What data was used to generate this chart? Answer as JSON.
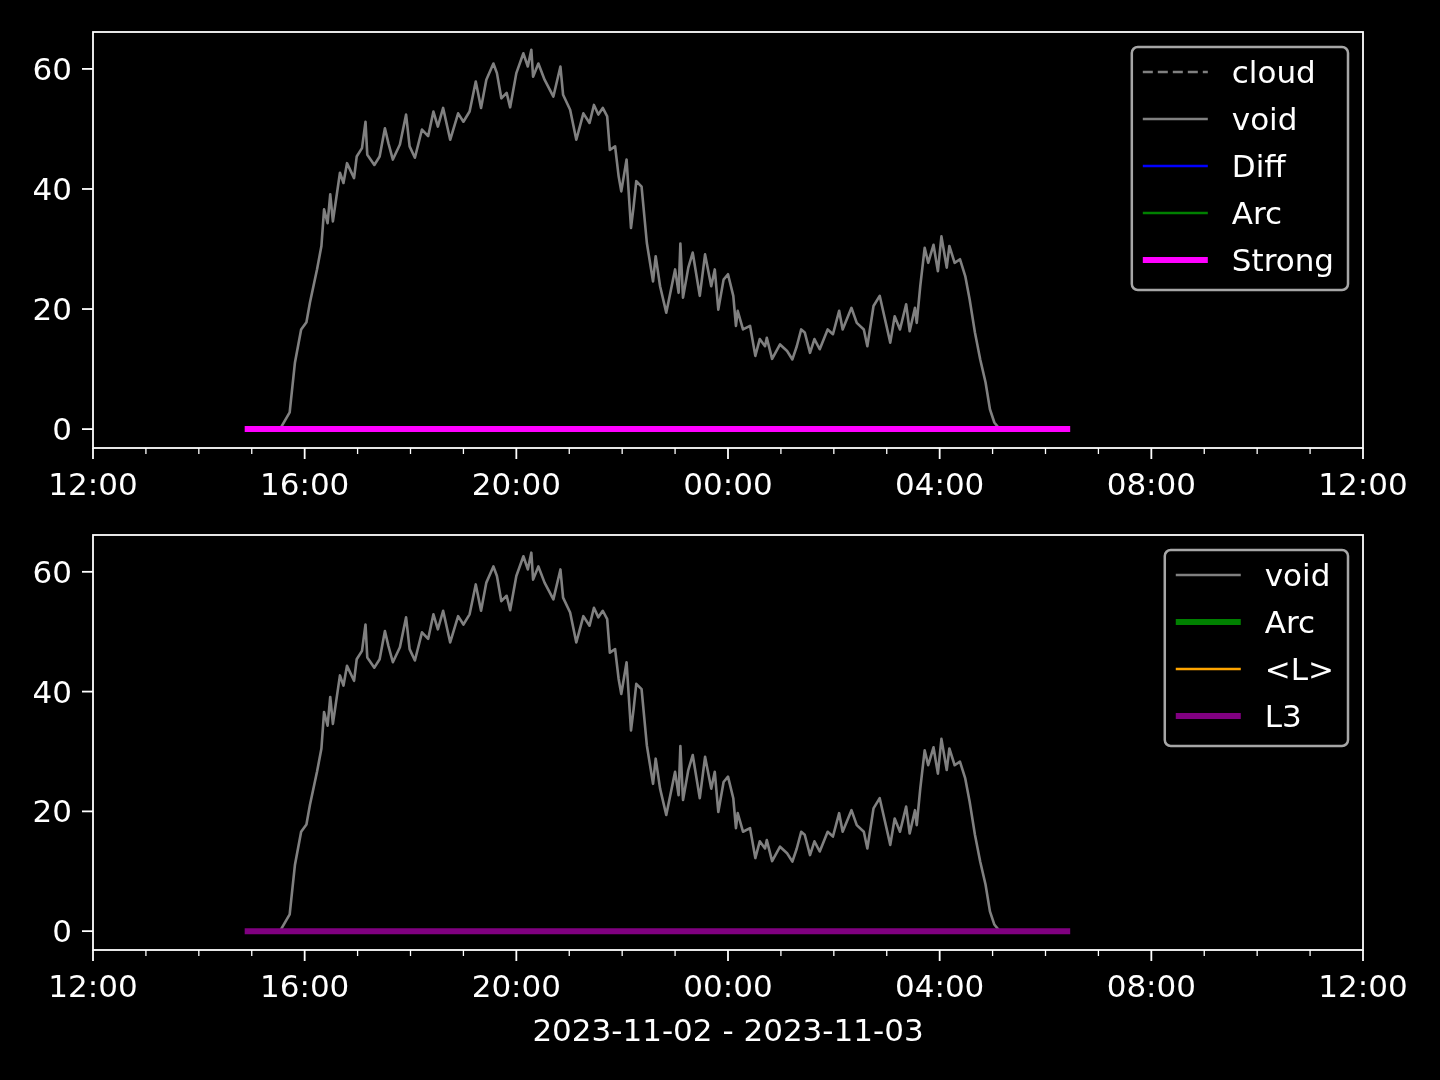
{
  "chart_data": [
    {
      "type": "line",
      "xlim": [
        "2023-11-02T12:00",
        "2023-11-03T12:00"
      ],
      "ylim": [
        -3.15,
        66.15
      ],
      "yticks": [
        0,
        20,
        40,
        60
      ],
      "xticks": [
        {
          "value": "2023-11-02T12:00",
          "label": "12:00"
        },
        {
          "value": "2023-11-02T13:00",
          "label": null
        },
        {
          "value": "2023-11-02T14:00",
          "label": null
        },
        {
          "value": "2023-11-02T15:00",
          "label": null
        },
        {
          "value": "2023-11-02T16:00",
          "label": "16:00"
        },
        {
          "value": "2023-11-02T17:00",
          "label": null
        },
        {
          "value": "2023-11-02T18:00",
          "label": null
        },
        {
          "value": "2023-11-02T19:00",
          "label": null
        },
        {
          "value": "2023-11-02T20:00",
          "label": "20:00"
        },
        {
          "value": "2023-11-02T21:00",
          "label": null
        },
        {
          "value": "2023-11-02T22:00",
          "label": null
        },
        {
          "value": "2023-11-02T23:00",
          "label": null
        },
        {
          "value": "2023-11-03T00:00",
          "label": "00:00"
        },
        {
          "value": "2023-11-03T01:00",
          "label": null
        },
        {
          "value": "2023-11-03T02:00",
          "label": null
        },
        {
          "value": "2023-11-03T03:00",
          "label": null
        },
        {
          "value": "2023-11-03T04:00",
          "label": "04:00"
        },
        {
          "value": "2023-11-03T05:00",
          "label": null
        },
        {
          "value": "2023-11-03T06:00",
          "label": null
        },
        {
          "value": "2023-11-03T07:00",
          "label": null
        },
        {
          "value": "2023-11-03T08:00",
          "label": "08:00"
        },
        {
          "value": "2023-11-03T09:00",
          "label": null
        },
        {
          "value": "2023-11-03T10:00",
          "label": null
        },
        {
          "value": "2023-11-03T11:00",
          "label": null
        },
        {
          "value": "2023-11-03T12:00",
          "label": "12:00"
        }
      ],
      "legend": "top right",
      "series": [
        {
          "name": "cloud",
          "color": "#808080",
          "line_style": "dashed"
        },
        {
          "name": "void",
          "color": "#808080",
          "x": [
            "2023-11-02T15:32",
            "2023-11-02T15:43",
            "2023-11-02T15:49",
            "2023-11-02T15:56",
            "2023-11-02T16:02",
            "2023-11-02T16:06",
            "2023-11-02T16:14",
            "2023-11-02T16:19",
            "2023-11-02T16:22",
            "2023-11-02T16:26",
            "2023-11-02T16:29",
            "2023-11-02T16:32",
            "2023-11-02T16:40",
            "2023-11-02T16:44",
            "2023-11-02T16:48",
            "2023-11-02T16:56",
            "2023-11-02T16:59",
            "2023-11-02T17:05",
            "2023-11-02T17:09",
            "2023-11-02T17:11",
            "2023-11-02T17:19",
            "2023-11-02T17:25",
            "2023-11-02T17:31",
            "2023-11-02T17:35",
            "2023-11-02T17:40",
            "2023-11-02T17:48",
            "2023-11-02T17:55",
            "2023-11-02T17:59",
            "2023-11-02T18:05",
            "2023-11-02T18:13",
            "2023-11-02T18:20",
            "2023-11-02T18:26",
            "2023-11-02T18:31",
            "2023-11-02T18:37",
            "2023-11-02T18:45",
            "2023-11-02T18:54",
            "2023-11-02T19:00",
            "2023-11-02T19:07",
            "2023-11-02T19:14",
            "2023-11-02T19:20",
            "2023-11-02T19:26",
            "2023-11-02T19:34",
            "2023-11-02T19:38",
            "2023-11-02T19:43",
            "2023-11-02T19:49",
            "2023-11-02T19:53",
            "2023-11-02T20:00",
            "2023-11-02T20:08",
            "2023-11-02T20:13",
            "2023-11-02T20:17",
            "2023-11-02T20:19",
            "2023-11-02T20:25",
            "2023-11-02T20:32",
            "2023-11-02T20:42",
            "2023-11-02T20:50",
            "2023-11-02T20:53",
            "2023-11-02T21:01",
            "2023-11-02T21:08",
            "2023-11-02T21:16",
            "2023-11-02T21:23",
            "2023-11-02T21:28",
            "2023-11-02T21:33",
            "2023-11-02T21:38",
            "2023-11-02T21:43",
            "2023-11-02T21:46",
            "2023-11-02T21:52",
            "2023-11-02T21:56",
            "2023-11-02T21:59",
            "2023-11-02T22:05",
            "2023-11-02T22:10",
            "2023-11-02T22:13",
            "2023-11-02T22:16",
            "2023-11-02T22:22",
            "2023-11-02T22:28",
            "2023-11-02T22:35",
            "2023-11-02T22:38",
            "2023-11-02T22:43",
            "2023-11-02T22:50",
            "2023-11-02T23:00",
            "2023-11-02T23:04",
            "2023-11-02T23:06",
            "2023-11-02T23:09",
            "2023-11-02T23:15",
            "2023-11-02T23:20",
            "2023-11-02T23:28",
            "2023-11-02T23:34",
            "2023-11-02T23:41",
            "2023-11-02T23:45",
            "2023-11-02T23:49",
            "2023-11-02T23:55",
            "2023-11-03T00:00",
            "2023-11-03T00:06",
            "2023-11-03T00:09",
            "2023-11-03T00:11",
            "2023-11-03T00:17",
            "2023-11-03T00:25",
            "2023-11-03T00:31",
            "2023-11-03T00:36",
            "2023-11-03T00:42",
            "2023-11-03T00:44",
            "2023-11-03T00:50",
            "2023-11-03T00:59",
            "2023-11-03T01:07",
            "2023-11-03T01:13",
            "2023-11-03T01:18",
            "2023-11-03T01:23",
            "2023-11-03T01:27",
            "2023-11-03T01:33",
            "2023-11-03T01:38",
            "2023-11-03T01:44",
            "2023-11-03T01:53",
            "2023-11-03T01:59",
            "2023-11-03T02:06",
            "2023-11-03T02:10",
            "2023-11-03T02:20",
            "2023-11-03T02:26",
            "2023-11-03T02:34",
            "2023-11-03T02:38",
            "2023-11-03T02:45",
            "2023-11-03T02:52",
            "2023-11-03T02:58",
            "2023-11-03T03:04",
            "2023-11-03T03:09",
            "2023-11-03T03:15",
            "2023-11-03T03:22",
            "2023-11-03T03:26",
            "2023-11-03T03:32",
            "2023-11-03T03:34",
            "2023-11-03T03:38",
            "2023-11-03T03:43",
            "2023-11-03T03:47",
            "2023-11-03T03:53",
            "2023-11-03T03:58",
            "2023-11-03T04:02",
            "2023-11-03T04:08",
            "2023-11-03T04:11",
            "2023-11-03T04:17",
            "2023-11-03T04:23",
            "2023-11-03T04:29",
            "2023-11-03T04:34",
            "2023-11-03T04:40",
            "2023-11-03T04:46",
            "2023-11-03T04:52",
            "2023-11-03T04:57",
            "2023-11-03T05:02",
            "2023-11-03T05:08"
          ],
          "values": [
            0,
            2.8,
            11.1,
            16.6,
            17.8,
            21.1,
            26.6,
            30.5,
            36.6,
            34.3,
            39.1,
            34.6,
            42.7,
            41.0,
            44.3,
            41.8,
            45.4,
            46.8,
            51.2,
            45.7,
            44.0,
            45.4,
            50.1,
            47.6,
            44.9,
            47.4,
            52.4,
            47.1,
            45.2,
            49.9,
            48.8,
            52.9,
            50.4,
            53.5,
            48.2,
            52.6,
            51.2,
            52.9,
            57.9,
            53.5,
            58.2,
            60.9,
            59.3,
            55.1,
            56.0,
            53.6,
            59.3,
            62.6,
            60.4,
            63.2,
            58.7,
            60.9,
            58.2,
            55.4,
            60.4,
            55.7,
            53.2,
            48.2,
            52.6,
            51.0,
            54.0,
            52.4,
            53.5,
            52.1,
            46.5,
            47.1,
            42.1,
            39.6,
            44.9,
            33.5,
            37.1,
            41.3,
            40.4,
            31.0,
            24.6,
            28.8,
            23.8,
            19.4,
            26.6,
            22.7,
            30.9,
            21.9,
            26.9,
            29.4,
            22.2,
            29.1,
            23.8,
            26.6,
            19.9,
            24.9,
            25.8,
            22.2,
            17.2,
            19.7,
            16.6,
            17.2,
            12.2,
            15.0,
            13.8,
            15.2,
            11.7,
            14.1,
            13.0,
            11.6,
            13.8,
            16.6,
            16.1,
            12.7,
            15.0,
            13.3,
            16.6,
            15.8,
            19.7,
            16.6,
            20.2,
            17.7,
            16.6,
            13.8,
            20.5,
            22.2,
            18.3,
            14.4,
            18.8,
            16.6,
            20.8,
            16.3,
            20.2,
            17.7,
            23.8,
            30.2,
            27.7,
            30.7,
            26.3,
            32.1,
            26.9,
            30.5,
            27.7,
            28.3,
            25.5,
            21.6,
            16.1,
            11.6,
            7.8,
            3.3,
            1.1,
            0
          ]
        },
        {
          "name": "Diff",
          "color": "#0000ff"
        },
        {
          "name": "Arc",
          "color": "#008000"
        },
        {
          "name": "Strong",
          "color": "#ff00ff",
          "x": [
            "2023-11-02T14:52",
            "2023-11-03T06:28"
          ],
          "values": [
            0,
            0
          ]
        }
      ]
    },
    {
      "type": "line",
      "xlim": [
        "2023-11-02T12:00",
        "2023-11-03T12:00"
      ],
      "ylim": [
        -3.15,
        66.15
      ],
      "yticks": [
        0,
        20,
        40,
        60
      ],
      "xticks": [
        {
          "value": "2023-11-02T12:00",
          "label": "12:00"
        },
        {
          "value": "2023-11-02T13:00",
          "label": null
        },
        {
          "value": "2023-11-02T14:00",
          "label": null
        },
        {
          "value": "2023-11-02T15:00",
          "label": null
        },
        {
          "value": "2023-11-02T16:00",
          "label": "16:00"
        },
        {
          "value": "2023-11-02T17:00",
          "label": null
        },
        {
          "value": "2023-11-02T18:00",
          "label": null
        },
        {
          "value": "2023-11-02T19:00",
          "label": null
        },
        {
          "value": "2023-11-02T20:00",
          "label": "20:00"
        },
        {
          "value": "2023-11-02T21:00",
          "label": null
        },
        {
          "value": "2023-11-02T22:00",
          "label": null
        },
        {
          "value": "2023-11-02T23:00",
          "label": null
        },
        {
          "value": "2023-11-03T00:00",
          "label": "00:00"
        },
        {
          "value": "2023-11-03T01:00",
          "label": null
        },
        {
          "value": "2023-11-03T02:00",
          "label": null
        },
        {
          "value": "2023-11-03T03:00",
          "label": null
        },
        {
          "value": "2023-11-03T04:00",
          "label": "04:00"
        },
        {
          "value": "2023-11-03T05:00",
          "label": null
        },
        {
          "value": "2023-11-03T06:00",
          "label": null
        },
        {
          "value": "2023-11-03T07:00",
          "label": null
        },
        {
          "value": "2023-11-03T08:00",
          "label": "08:00"
        },
        {
          "value": "2023-11-03T09:00",
          "label": null
        },
        {
          "value": "2023-11-03T10:00",
          "label": null
        },
        {
          "value": "2023-11-03T11:00",
          "label": null
        },
        {
          "value": "2023-11-03T12:00",
          "label": "12:00"
        }
      ],
      "xlabel": "2023-11-02 - 2023-11-03",
      "legend": "top right",
      "series": [
        {
          "name": "void",
          "color": "#808080",
          "x": [
            "2023-11-02T15:32",
            "2023-11-02T15:43",
            "2023-11-02T15:49",
            "2023-11-02T15:56",
            "2023-11-02T16:02",
            "2023-11-02T16:06",
            "2023-11-02T16:14",
            "2023-11-02T16:19",
            "2023-11-02T16:22",
            "2023-11-02T16:26",
            "2023-11-02T16:29",
            "2023-11-02T16:32",
            "2023-11-02T16:40",
            "2023-11-02T16:44",
            "2023-11-02T16:48",
            "2023-11-02T16:56",
            "2023-11-02T16:59",
            "2023-11-02T17:05",
            "2023-11-02T17:09",
            "2023-11-02T17:11",
            "2023-11-02T17:19",
            "2023-11-02T17:25",
            "2023-11-02T17:31",
            "2023-11-02T17:35",
            "2023-11-02T17:40",
            "2023-11-02T17:48",
            "2023-11-02T17:55",
            "2023-11-02T17:59",
            "2023-11-02T18:05",
            "2023-11-02T18:13",
            "2023-11-02T18:20",
            "2023-11-02T18:26",
            "2023-11-02T18:31",
            "2023-11-02T18:37",
            "2023-11-02T18:45",
            "2023-11-02T18:54",
            "2023-11-02T19:00",
            "2023-11-02T19:07",
            "2023-11-02T19:14",
            "2023-11-02T19:20",
            "2023-11-02T19:26",
            "2023-11-02T19:34",
            "2023-11-02T19:38",
            "2023-11-02T19:43",
            "2023-11-02T19:49",
            "2023-11-02T19:53",
            "2023-11-02T20:00",
            "2023-11-02T20:08",
            "2023-11-02T20:13",
            "2023-11-02T20:17",
            "2023-11-02T20:19",
            "2023-11-02T20:25",
            "2023-11-02T20:32",
            "2023-11-02T20:42",
            "2023-11-02T20:50",
            "2023-11-02T20:53",
            "2023-11-02T21:01",
            "2023-11-02T21:08",
            "2023-11-02T21:16",
            "2023-11-02T21:23",
            "2023-11-02T21:28",
            "2023-11-02T21:33",
            "2023-11-02T21:38",
            "2023-11-02T21:43",
            "2023-11-02T21:46",
            "2023-11-02T21:52",
            "2023-11-02T21:56",
            "2023-11-02T21:59",
            "2023-11-02T22:05",
            "2023-11-02T22:10",
            "2023-11-02T22:13",
            "2023-11-02T22:16",
            "2023-11-02T22:22",
            "2023-11-02T22:28",
            "2023-11-02T22:35",
            "2023-11-02T22:38",
            "2023-11-02T22:43",
            "2023-11-02T22:50",
            "2023-11-02T23:00",
            "2023-11-02T23:04",
            "2023-11-02T23:06",
            "2023-11-02T23:09",
            "2023-11-02T23:15",
            "2023-11-02T23:20",
            "2023-11-02T23:28",
            "2023-11-02T23:34",
            "2023-11-02T23:41",
            "2023-11-02T23:45",
            "2023-11-02T23:49",
            "2023-11-02T23:55",
            "2023-11-03T00:00",
            "2023-11-03T00:06",
            "2023-11-03T00:09",
            "2023-11-03T00:11",
            "2023-11-03T00:17",
            "2023-11-03T00:25",
            "2023-11-03T00:31",
            "2023-11-03T00:36",
            "2023-11-03T00:42",
            "2023-11-03T00:44",
            "2023-11-03T00:50",
            "2023-11-03T00:59",
            "2023-11-03T01:07",
            "2023-11-03T01:13",
            "2023-11-03T01:18",
            "2023-11-03T01:23",
            "2023-11-03T01:27",
            "2023-11-03T01:33",
            "2023-11-03T01:38",
            "2023-11-03T01:44",
            "2023-11-03T01:53",
            "2023-11-03T01:59",
            "2023-11-03T02:06",
            "2023-11-03T02:10",
            "2023-11-03T02:20",
            "2023-11-03T02:26",
            "2023-11-03T02:34",
            "2023-11-03T02:38",
            "2023-11-03T02:45",
            "2023-11-03T02:52",
            "2023-11-03T02:58",
            "2023-11-03T03:04",
            "2023-11-03T03:09",
            "2023-11-03T03:15",
            "2023-11-03T03:22",
            "2023-11-03T03:26",
            "2023-11-03T03:32",
            "2023-11-03T03:34",
            "2023-11-03T03:38",
            "2023-11-03T03:43",
            "2023-11-03T03:47",
            "2023-11-03T03:53",
            "2023-11-03T03:58",
            "2023-11-03T04:02",
            "2023-11-03T04:08",
            "2023-11-03T04:11",
            "2023-11-03T04:17",
            "2023-11-03T04:23",
            "2023-11-03T04:29",
            "2023-11-03T04:34",
            "2023-11-03T04:40",
            "2023-11-03T04:46",
            "2023-11-03T04:52",
            "2023-11-03T04:57",
            "2023-11-03T05:02",
            "2023-11-03T05:08"
          ],
          "values": [
            0,
            2.8,
            11.1,
            16.6,
            17.8,
            21.1,
            26.6,
            30.5,
            36.6,
            34.3,
            39.1,
            34.6,
            42.7,
            41.0,
            44.3,
            41.8,
            45.4,
            46.8,
            51.2,
            45.7,
            44.0,
            45.4,
            50.1,
            47.6,
            44.9,
            47.4,
            52.4,
            47.1,
            45.2,
            49.9,
            48.8,
            52.9,
            50.4,
            53.5,
            48.2,
            52.6,
            51.2,
            52.9,
            57.9,
            53.5,
            58.2,
            60.9,
            59.3,
            55.1,
            56.0,
            53.6,
            59.3,
            62.6,
            60.4,
            63.2,
            58.7,
            60.9,
            58.2,
            55.4,
            60.4,
            55.7,
            53.2,
            48.2,
            52.6,
            51.0,
            54.0,
            52.4,
            53.5,
            52.1,
            46.5,
            47.1,
            42.1,
            39.6,
            44.9,
            33.5,
            37.1,
            41.3,
            40.4,
            31.0,
            24.6,
            28.8,
            23.8,
            19.4,
            26.6,
            22.7,
            30.9,
            21.9,
            26.9,
            29.4,
            22.2,
            29.1,
            23.8,
            26.6,
            19.9,
            24.9,
            25.8,
            22.2,
            17.2,
            19.7,
            16.6,
            17.2,
            12.2,
            15.0,
            13.8,
            15.2,
            11.7,
            14.1,
            13.0,
            11.6,
            13.8,
            16.6,
            16.1,
            12.7,
            15.0,
            13.3,
            16.6,
            15.8,
            19.7,
            16.6,
            20.2,
            17.7,
            16.6,
            13.8,
            20.5,
            22.2,
            18.3,
            14.4,
            18.8,
            16.6,
            20.8,
            16.3,
            20.2,
            17.7,
            23.8,
            30.2,
            27.7,
            30.7,
            26.3,
            32.1,
            26.9,
            30.5,
            27.7,
            28.3,
            25.5,
            21.6,
            16.1,
            11.6,
            7.8,
            3.3,
            1.1,
            0
          ]
        },
        {
          "name": "Arc",
          "color": "#008000"
        },
        {
          "name": "<L>",
          "color": "#ffa500"
        },
        {
          "name": "L3",
          "color": "#800080",
          "x": [
            "2023-11-02T14:52",
            "2023-11-03T06:28"
          ],
          "values": [
            0,
            0
          ]
        }
      ]
    }
  ]
}
